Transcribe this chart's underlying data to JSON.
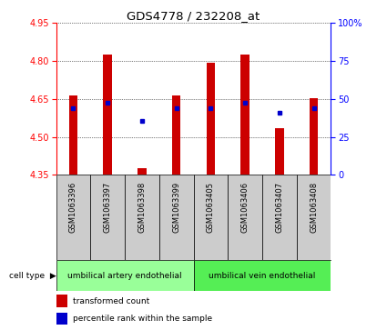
{
  "title": "GDS4778 / 232208_at",
  "samples": [
    "GSM1063396",
    "GSM1063397",
    "GSM1063398",
    "GSM1063399",
    "GSM1063405",
    "GSM1063406",
    "GSM1063407",
    "GSM1063408"
  ],
  "red_values": [
    4.665,
    4.825,
    4.375,
    4.665,
    4.793,
    4.825,
    4.535,
    4.655
  ],
  "blue_values": [
    4.615,
    4.635,
    4.565,
    4.615,
    4.615,
    4.635,
    4.595,
    4.615
  ],
  "ylim_left": [
    4.35,
    4.95
  ],
  "ylim_right": [
    0,
    100
  ],
  "yticks_left": [
    4.35,
    4.5,
    4.65,
    4.8,
    4.95
  ],
  "yticks_right": [
    0,
    25,
    50,
    75,
    100
  ],
  "group1_label": "umbilical artery endothelial",
  "group1_indices": [
    0,
    1,
    2,
    3
  ],
  "group2_label": "umbilical vein endothelial",
  "group2_indices": [
    4,
    5,
    6,
    7
  ],
  "bar_color": "#cc0000",
  "dot_color": "#0000cc",
  "bg_color": "#ffffff",
  "sample_box_color": "#cccccc",
  "group1_color": "#99ff99",
  "group2_color": "#55ee55",
  "baseline": 4.35,
  "legend_red": "transformed count",
  "legend_blue": "percentile rank within the sample",
  "bar_width": 0.25
}
